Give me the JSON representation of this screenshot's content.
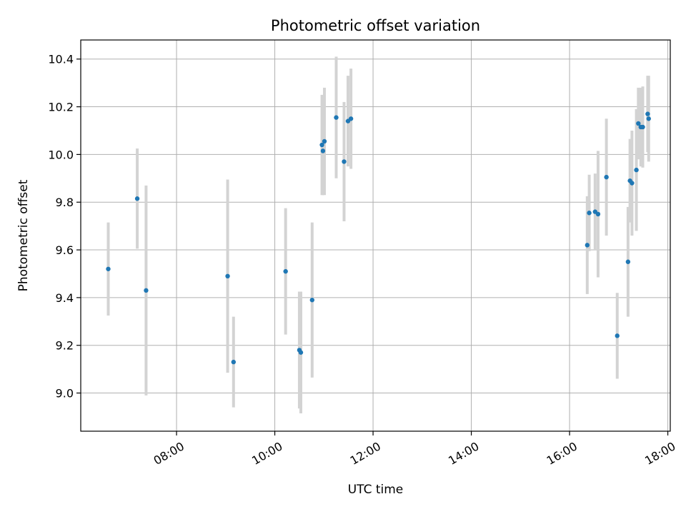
{
  "chart_data": {
    "type": "scatter",
    "title": "Photometric offset variation",
    "xlabel": "UTC time",
    "ylabel": "Photometric offset",
    "x_unit": "hours (UTC)",
    "xlim": [
      6.05,
      18.05
    ],
    "ylim": [
      8.84,
      10.48
    ],
    "x_ticks": [
      {
        "value": 8,
        "label": "08:00"
      },
      {
        "value": 10,
        "label": "10:00"
      },
      {
        "value": 12,
        "label": "12:00"
      },
      {
        "value": 14,
        "label": "14:00"
      },
      {
        "value": 16,
        "label": "16:00"
      },
      {
        "value": 18,
        "label": "18:00"
      }
    ],
    "y_ticks": [
      {
        "value": 9.0,
        "label": "9.0"
      },
      {
        "value": 9.2,
        "label": "9.2"
      },
      {
        "value": 9.4,
        "label": "9.4"
      },
      {
        "value": 9.6,
        "label": "9.6"
      },
      {
        "value": 9.8,
        "label": "9.8"
      },
      {
        "value": 10.0,
        "label": "10.0"
      },
      {
        "value": 10.2,
        "label": "10.2"
      },
      {
        "value": 10.4,
        "label": "10.4"
      }
    ],
    "grid": true,
    "marker_color": "#1f77b4",
    "errorbar_color": "#d3d3d3",
    "points": [
      {
        "x": 6.61,
        "y": 9.52,
        "err": 0.195
      },
      {
        "x": 7.2,
        "y": 9.815,
        "err": 0.21
      },
      {
        "x": 7.38,
        "y": 9.43,
        "err": 0.44
      },
      {
        "x": 9.04,
        "y": 9.49,
        "err": 0.405
      },
      {
        "x": 9.16,
        "y": 9.13,
        "err": 0.19
      },
      {
        "x": 10.22,
        "y": 9.51,
        "err": 0.265
      },
      {
        "x": 10.5,
        "y": 9.18,
        "err": 0.245
      },
      {
        "x": 10.53,
        "y": 9.17,
        "err": 0.255
      },
      {
        "x": 10.76,
        "y": 9.39,
        "err": 0.325
      },
      {
        "x": 10.96,
        "y": 10.04,
        "err": 0.21
      },
      {
        "x": 10.98,
        "y": 10.015,
        "err": 0.185
      },
      {
        "x": 11.01,
        "y": 10.055,
        "err": 0.225
      },
      {
        "x": 11.25,
        "y": 10.155,
        "err": 0.255
      },
      {
        "x": 11.41,
        "y": 9.97,
        "err": 0.25
      },
      {
        "x": 11.49,
        "y": 10.14,
        "err": 0.19
      },
      {
        "x": 11.55,
        "y": 10.15,
        "err": 0.21
      },
      {
        "x": 16.36,
        "y": 9.62,
        "err": 0.205
      },
      {
        "x": 16.4,
        "y": 9.755,
        "err": 0.16
      },
      {
        "x": 16.52,
        "y": 9.76,
        "err": 0.16
      },
      {
        "x": 16.58,
        "y": 9.75,
        "err": 0.265
      },
      {
        "x": 16.75,
        "y": 9.905,
        "err": 0.245
      },
      {
        "x": 16.97,
        "y": 9.24,
        "err": 0.18
      },
      {
        "x": 17.19,
        "y": 9.55,
        "err": 0.23
      },
      {
        "x": 17.23,
        "y": 9.89,
        "err": 0.175
      },
      {
        "x": 17.27,
        "y": 9.88,
        "err": 0.22
      },
      {
        "x": 17.36,
        "y": 9.935,
        "err": 0.255
      },
      {
        "x": 17.4,
        "y": 10.13,
        "err": 0.15
      },
      {
        "x": 17.45,
        "y": 10.115,
        "err": 0.165
      },
      {
        "x": 17.49,
        "y": 10.115,
        "err": 0.17
      },
      {
        "x": 17.59,
        "y": 10.17,
        "err": 0.16
      },
      {
        "x": 17.61,
        "y": 10.15,
        "err": 0.18
      }
    ]
  }
}
